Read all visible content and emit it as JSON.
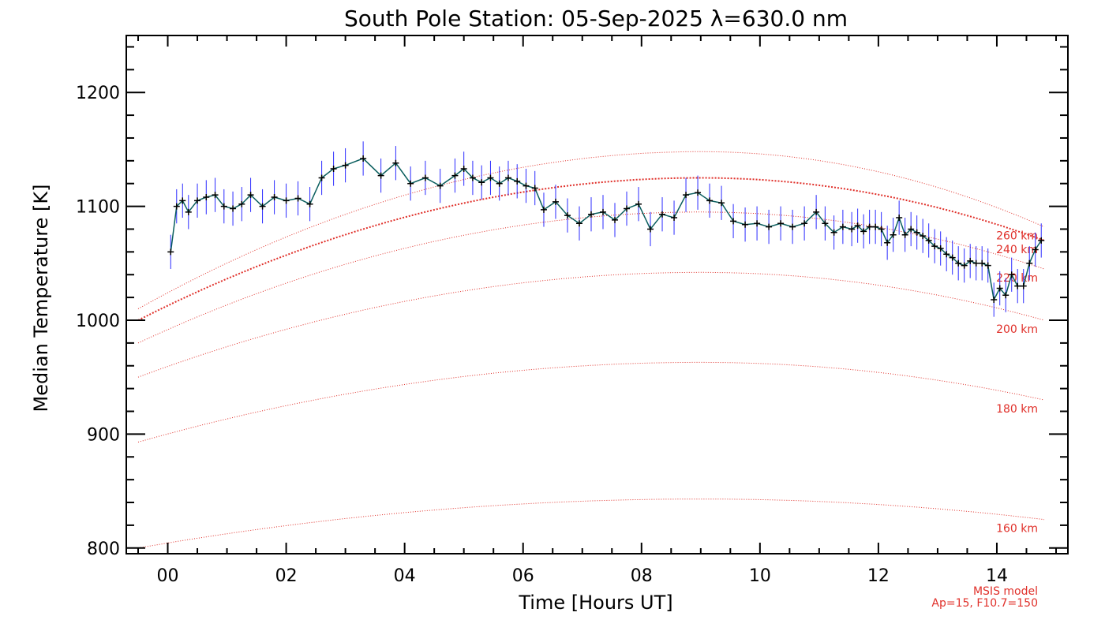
{
  "chart_data": {
    "type": "line",
    "title": "South Pole Station: 05-Sep-2025 λ=630.0 nm",
    "xlabel": "Time [Hours UT]",
    "ylabel": "Median Temperature [K]",
    "xlim": [
      -0.7,
      15.2
    ],
    "ylim": [
      795,
      1250
    ],
    "x_ticks": [
      0,
      2,
      4,
      6,
      8,
      10,
      12,
      14
    ],
    "x_tick_labels": [
      "00",
      "02",
      "04",
      "06",
      "08",
      "10",
      "12",
      "14"
    ],
    "y_ticks": [
      800,
      900,
      1000,
      1100,
      1200
    ],
    "y_tick_labels": [
      "800",
      "900",
      "1000",
      "1100",
      "1200"
    ],
    "grid": false,
    "colors": {
      "data_line": "#0a5e5e",
      "error_bars": "#2b2bff",
      "markers": "#000000",
      "model": "#e0302a"
    },
    "series": [
      {
        "x": [
          0.05,
          0.15,
          0.25,
          0.35,
          0.5,
          0.65,
          0.8,
          0.95,
          1.1,
          1.25,
          1.4,
          1.6,
          1.8,
          2.0,
          2.2,
          2.4,
          2.6,
          2.8,
          3.0,
          3.3,
          3.6,
          3.85,
          4.1,
          4.35,
          4.6,
          4.85,
          5.0,
          5.15,
          5.3,
          5.45,
          5.6,
          5.75,
          5.9,
          6.05,
          6.2,
          6.35,
          6.55,
          6.75,
          6.95,
          7.15,
          7.35,
          7.55,
          7.75,
          7.95,
          8.15,
          8.35,
          8.55,
          8.75,
          8.95,
          9.15,
          9.35,
          9.55,
          9.75,
          9.95,
          10.15,
          10.35,
          10.55,
          10.75,
          10.95,
          11.1,
          11.25,
          11.4,
          11.55,
          11.65,
          11.75,
          11.85,
          11.95,
          12.05,
          12.15,
          12.25,
          12.35,
          12.45,
          12.55,
          12.65,
          12.75,
          12.85,
          12.95,
          13.05,
          13.15,
          13.25,
          13.35,
          13.45,
          13.55,
          13.65,
          13.75,
          13.85,
          13.95,
          14.05,
          14.15,
          14.25,
          14.35,
          14.45,
          14.55,
          14.65,
          14.75
        ],
        "y": [
          1060,
          1100,
          1105,
          1095,
          1105,
          1108,
          1110,
          1100,
          1098,
          1102,
          1110,
          1100,
          1108,
          1105,
          1107,
          1102,
          1125,
          1133,
          1136,
          1142,
          1127,
          1138,
          1120,
          1125,
          1118,
          1127,
          1133,
          1125,
          1121,
          1125,
          1120,
          1125,
          1122,
          1118,
          1116,
          1097,
          1104,
          1092,
          1085,
          1093,
          1095,
          1088,
          1098,
          1102,
          1080,
          1093,
          1090,
          1110,
          1112,
          1105,
          1103,
          1087,
          1084,
          1085,
          1082,
          1085,
          1082,
          1085,
          1095,
          1085,
          1077,
          1082,
          1080,
          1083,
          1078,
          1082,
          1082,
          1080,
          1068,
          1075,
          1090,
          1075,
          1080,
          1077,
          1074,
          1070,
          1065,
          1063,
          1058,
          1055,
          1050,
          1048,
          1052,
          1050,
          1050,
          1048,
          1018,
          1028,
          1022,
          1040,
          1030,
          1030,
          1050,
          1062,
          1070
        ],
        "yerr": [
          15,
          15,
          15,
          15,
          15,
          15,
          15,
          15,
          15,
          15,
          15,
          15,
          15,
          15,
          15,
          15,
          15,
          15,
          15,
          15,
          15,
          15,
          15,
          15,
          15,
          15,
          15,
          15,
          15,
          15,
          15,
          15,
          15,
          15,
          15,
          15,
          15,
          15,
          15,
          15,
          15,
          15,
          15,
          15,
          15,
          15,
          15,
          15,
          15,
          15,
          15,
          15,
          15,
          15,
          15,
          15,
          15,
          15,
          15,
          15,
          15,
          15,
          15,
          15,
          15,
          15,
          15,
          15,
          15,
          15,
          15,
          15,
          15,
          15,
          15,
          15,
          15,
          15,
          15,
          15,
          15,
          15,
          15,
          15,
          15,
          15,
          15,
          15,
          15,
          15,
          15,
          15,
          15,
          15,
          15
        ]
      }
    ],
    "model_curves": [
      {
        "label": "160 km",
        "y_start": 800,
        "y_peak": 843,
        "y_end": 825
      },
      {
        "label": "180 km",
        "y_start": 893,
        "y_peak": 963,
        "y_end": 930
      },
      {
        "label": "200 km",
        "y_start": 950,
        "y_peak": 1042,
        "y_end": 1000
      },
      {
        "label": "220 km",
        "y_start": 980,
        "y_peak": 1095,
        "y_end": 1045
      },
      {
        "label": "240 km",
        "y_start": 1000,
        "y_peak": 1125,
        "y_end": 1070
      },
      {
        "label": "260 km",
        "y_start": 1010,
        "y_peak": 1148,
        "y_end": 1082
      }
    ],
    "model_peak_x": 9.0,
    "model_x_range": [
      -0.5,
      14.8
    ],
    "model_note": [
      "MSIS model",
      "Ap=15, F10.7=150"
    ]
  }
}
